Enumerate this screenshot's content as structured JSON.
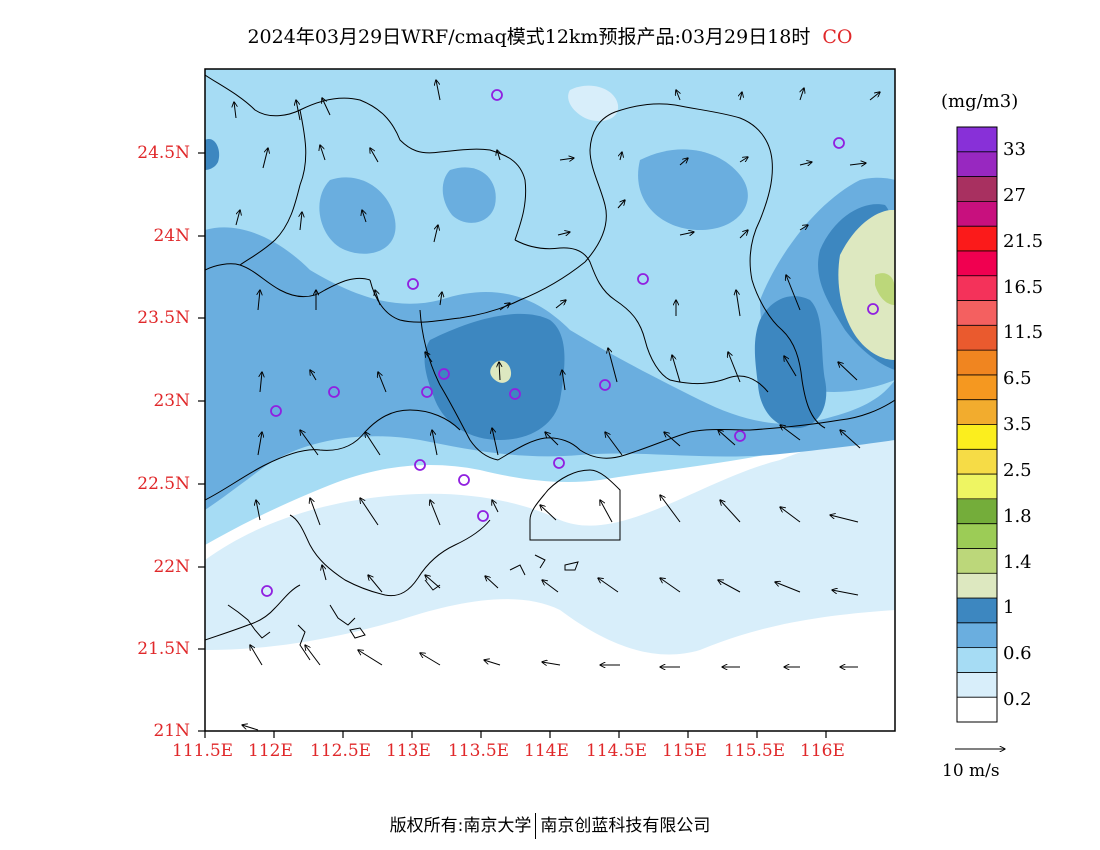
{
  "title": "2024年03月29日WRF/cmaq模式12km预报产品:03月29日18时",
  "species": "CO",
  "units": "(mg/m3)",
  "latitude_labels": [
    "24.5N",
    "24N",
    "23.5N",
    "23N",
    "22.5N",
    "22N",
    "21.5N",
    "21N"
  ],
  "longitude_labels": [
    "111.5E",
    "112E",
    "112.5E",
    "113E",
    "113.5E",
    "114E",
    "114.5E",
    "115E",
    "115.5E",
    "116E"
  ],
  "colorbar": {
    "colors": [
      "#ffffff",
      "#d8eefa",
      "#a6dcf4",
      "#6aaedf",
      "#3d87c0",
      "#dde8c0",
      "#bcd77a",
      "#9ccc56",
      "#74ad3a",
      "#eef562",
      "#f6dc46",
      "#fbee1e",
      "#f2ac2e",
      "#f59820",
      "#f08520",
      "#ea5a2e",
      "#f46060",
      "#f4325a",
      "#f00050",
      "#fb1a1a",
      "#c8107e",
      "#a83060",
      "#9828c0",
      "#8830d8"
    ],
    "labels": [
      "0.2",
      "0.6",
      "1",
      "1.4",
      "1.8",
      "2.5",
      "3.5",
      "6.5",
      "11.5",
      "16.5",
      "21.5",
      "27",
      "33"
    ]
  },
  "wind_reference": "10 m/s",
  "footer": {
    "left": "版权所有:南京大学",
    "right": "南京创蓝科技有限公司"
  }
}
